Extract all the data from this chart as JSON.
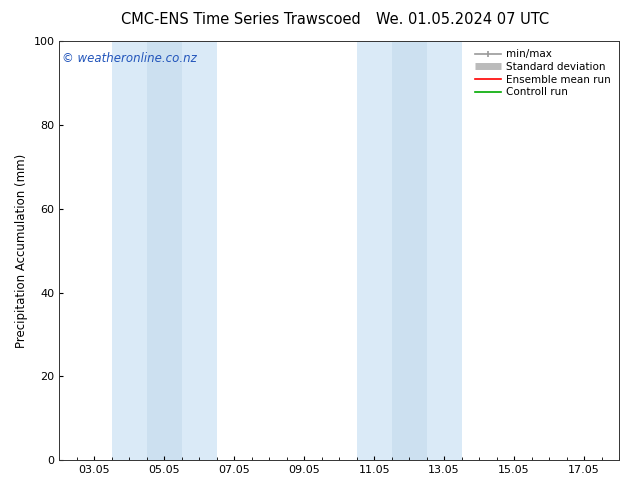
{
  "title_left": "CMC-ENS Time Series Trawscoed",
  "title_right": "We. 01.05.2024 07 UTC",
  "ylabel": "Precipitation Accumulation (mm)",
  "ylim": [
    0,
    100
  ],
  "yticks": [
    0,
    20,
    40,
    60,
    80,
    100
  ],
  "xtick_labels": [
    "03.05",
    "05.05",
    "07.05",
    "09.05",
    "11.05",
    "13.05",
    "15.05",
    "17.05"
  ],
  "xmin": 2.0,
  "xmax": 18.0,
  "shaded_bands": [
    {
      "x_start": 3.5,
      "x_end": 4.5,
      "color": "#daeaf7"
    },
    {
      "x_start": 4.5,
      "x_end": 5.5,
      "color": "#cce0f0"
    },
    {
      "x_start": 5.5,
      "x_end": 6.5,
      "color": "#daeaf7"
    },
    {
      "x_start": 10.5,
      "x_end": 11.5,
      "color": "#daeaf7"
    },
    {
      "x_start": 11.5,
      "x_end": 12.5,
      "color": "#cce0f0"
    },
    {
      "x_start": 12.5,
      "x_end": 13.5,
      "color": "#daeaf7"
    }
  ],
  "watermark_text": "© weatheronline.co.nz",
  "watermark_color": "#2255bb",
  "watermark_fontsize": 8.5,
  "legend_entries": [
    {
      "label": "min/max",
      "color": "#999999",
      "lw": 1.2,
      "type": "minmax"
    },
    {
      "label": "Standard deviation",
      "color": "#bbbbbb",
      "lw": 5,
      "type": "thick"
    },
    {
      "label": "Ensemble mean run",
      "color": "#ff0000",
      "lw": 1.2,
      "type": "line"
    },
    {
      "label": "Controll run",
      "color": "#00aa00",
      "lw": 1.2,
      "type": "line"
    }
  ],
  "bg_color": "#ffffff",
  "plot_bg_color": "#ffffff",
  "title_fontsize": 10.5,
  "axis_fontsize": 8.5,
  "tick_fontsize": 8
}
